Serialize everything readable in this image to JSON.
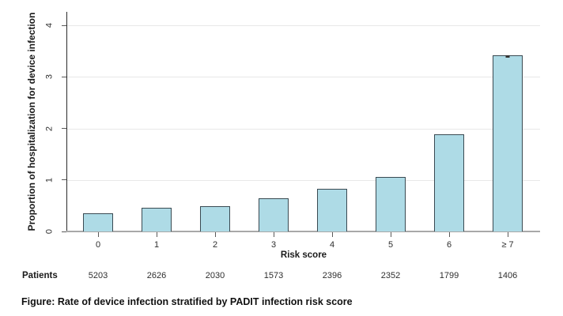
{
  "chart_data": {
    "type": "bar",
    "title": "",
    "xlabel": "Risk score",
    "ylabel": "Proportion of hospitalization for device infection",
    "categories": [
      "0",
      "1",
      "2",
      "3",
      "4",
      "5",
      "6",
      "≥ 7"
    ],
    "values": [
      0.35,
      0.46,
      0.49,
      0.64,
      0.83,
      1.06,
      1.88,
      3.41
    ],
    "ylim": [
      0,
      4
    ],
    "yticks": [
      0,
      1,
      2,
      3,
      4
    ],
    "grid": true,
    "legend": false,
    "bar_fill": "#aedbe6",
    "bar_border": "#3a4a52",
    "gridline_color": "#e8e8e8",
    "axis_color": "#2b2b2b",
    "baseline_color": "#a8a8a8",
    "last_bar_top_marker": true
  },
  "patients": {
    "label": "Patients",
    "counts": [
      "5203",
      "2626",
      "2030",
      "1573",
      "2396",
      "2352",
      "1799",
      "1406"
    ]
  },
  "caption": "Figure: Rate of device infection stratified by PADIT infection risk score"
}
